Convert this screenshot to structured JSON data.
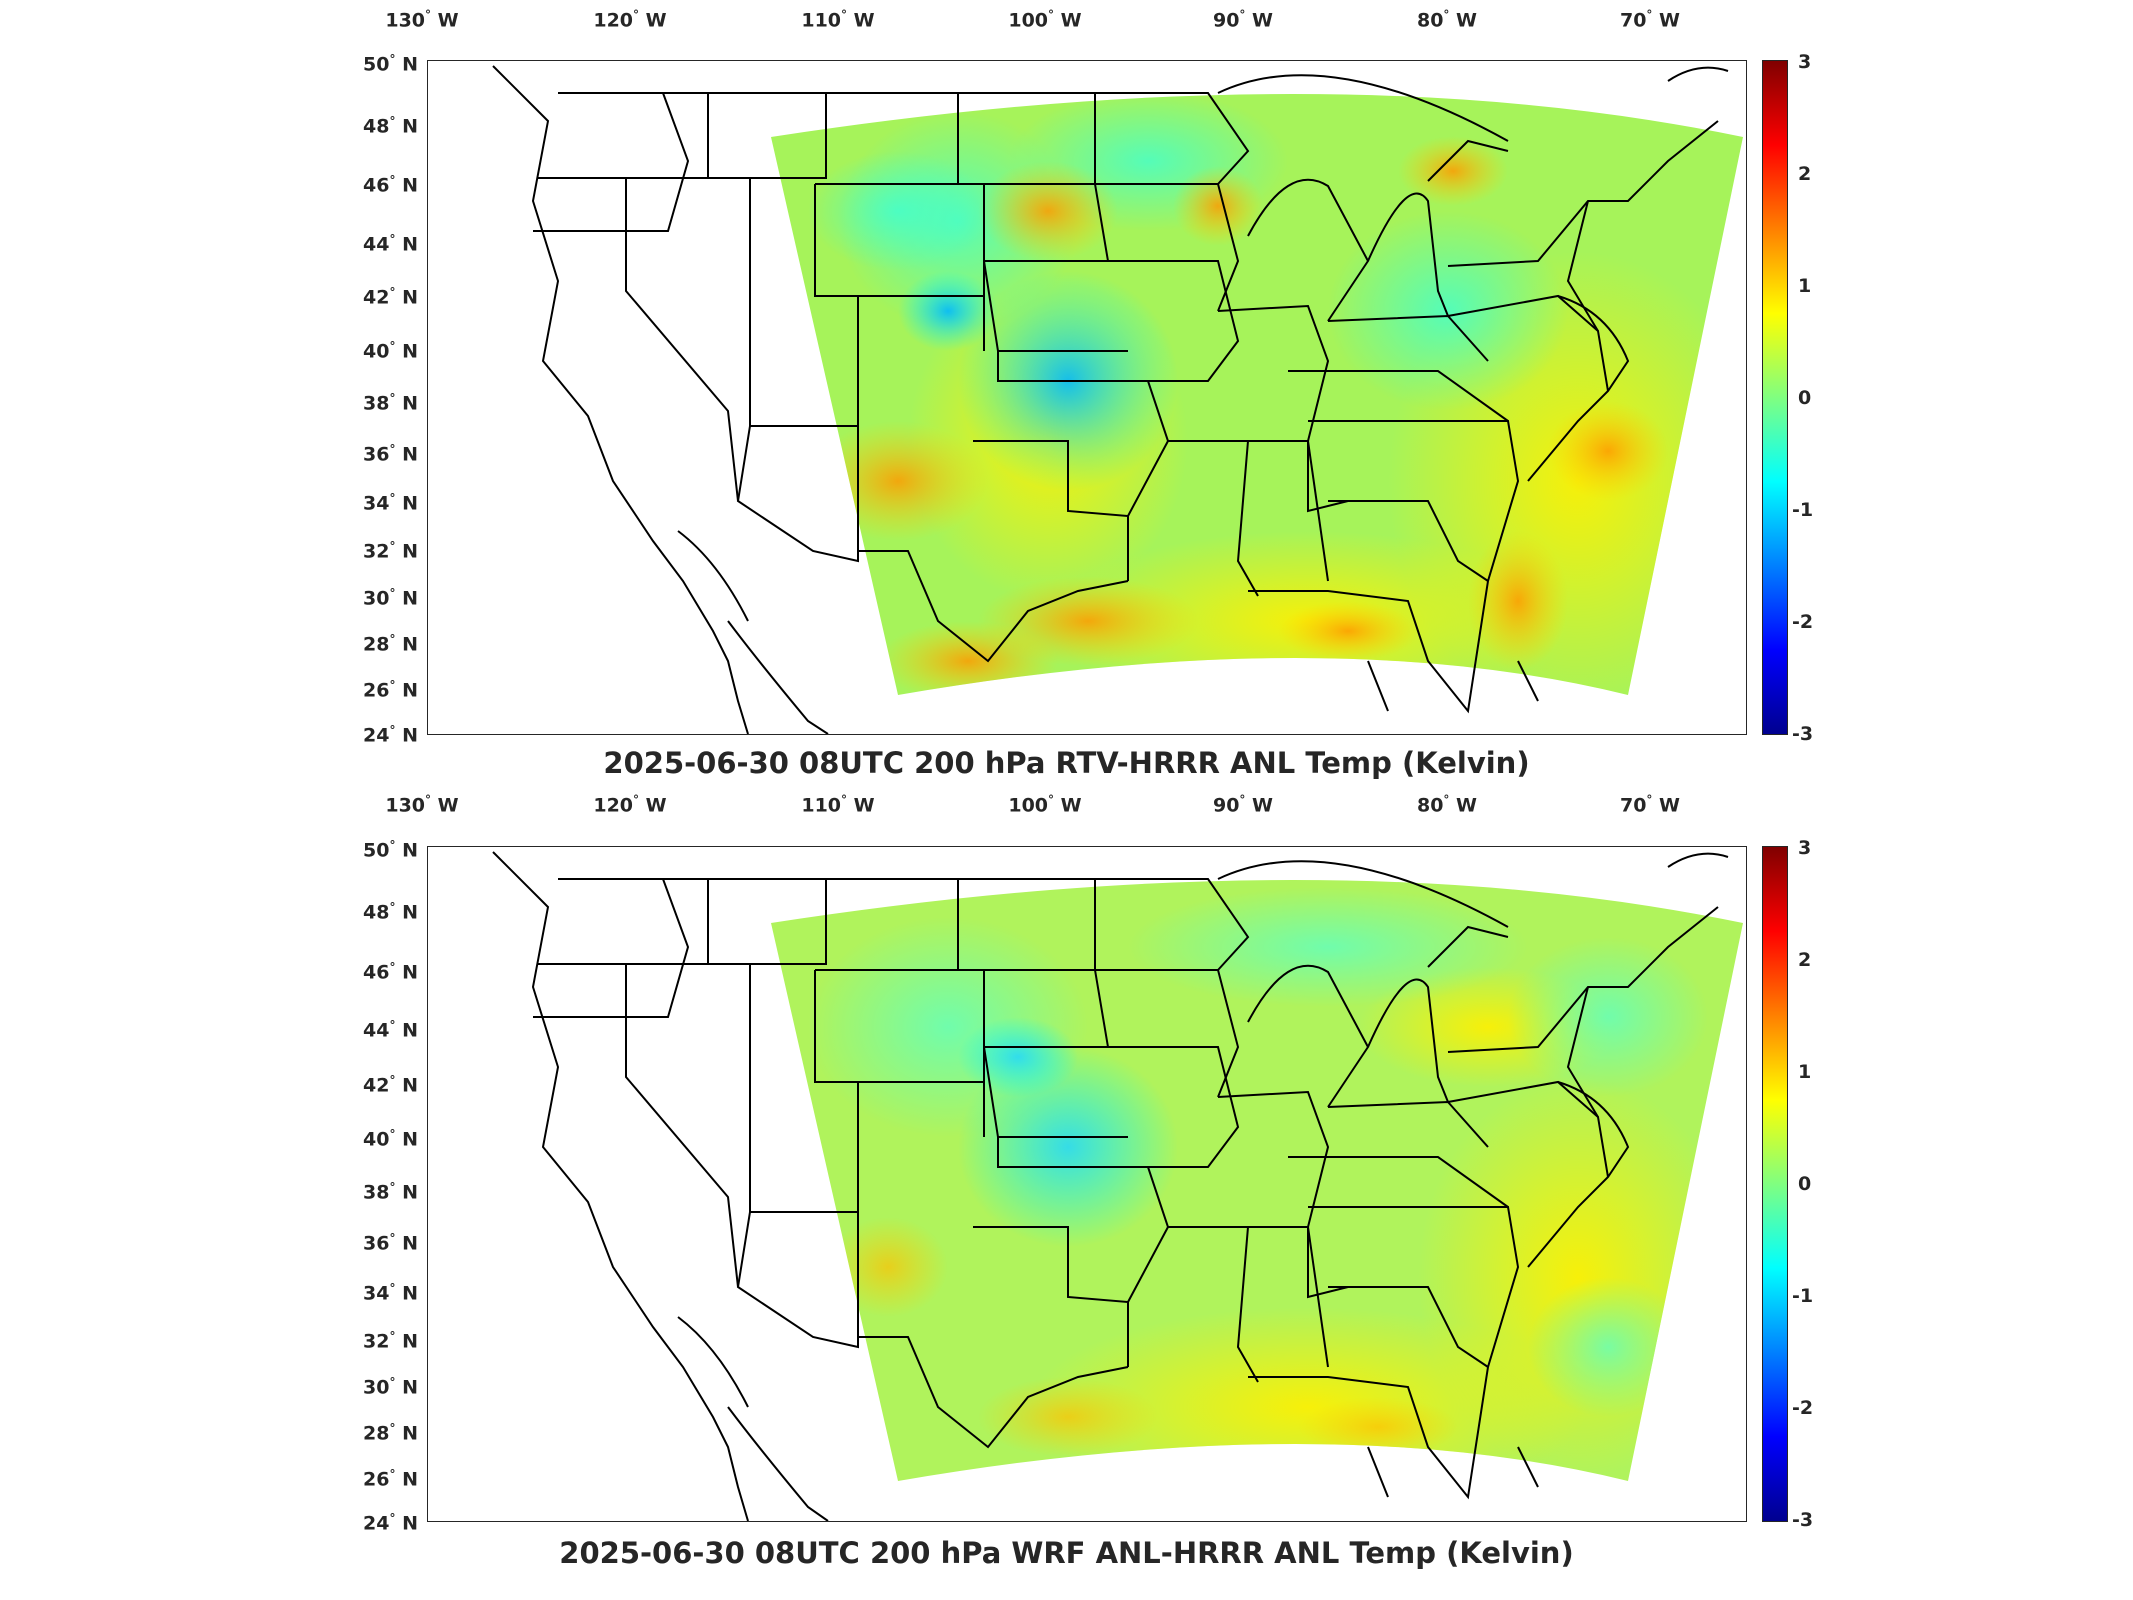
{
  "panels": [
    {
      "title": "2025-06-30 08UTC 200 hPa RTV-HRRR ANL Temp (Kelvin)",
      "lon_labels": [
        "130",
        "120",
        "110",
        "100",
        "90",
        "80",
        "70"
      ],
      "lon_suffix": "W",
      "lat_labels": [
        "50",
        "48",
        "46",
        "44",
        "42",
        "40",
        "38",
        "36",
        "34",
        "32",
        "30",
        "28",
        "26",
        "24"
      ],
      "lat_suffix": "N",
      "colorbar_ticks": [
        "3",
        "2",
        "1",
        "0",
        "-1",
        "-2",
        "-3"
      ],
      "field_bias": 0.4
    },
    {
      "title": "2025-06-30 08UTC 200 hPa WRF ANL-HRRR ANL Temp (Kelvin)",
      "lon_labels": [
        "130",
        "120",
        "110",
        "100",
        "90",
        "80",
        "70"
      ],
      "lon_suffix": "W",
      "lat_labels": [
        "50",
        "48",
        "46",
        "44",
        "42",
        "40",
        "38",
        "36",
        "34",
        "32",
        "30",
        "28",
        "26",
        "24"
      ],
      "lat_suffix": "N",
      "colorbar_ticks": [
        "3",
        "2",
        "1",
        "0",
        "-1",
        "-2",
        "-3"
      ],
      "field_bias": 0.3
    }
  ],
  "colors": {
    "colormap": [
      "#00008f",
      "#0000ff",
      "#0080ff",
      "#00ffff",
      "#80ff80",
      "#ffff00",
      "#ff8000",
      "#ff0000",
      "#800000"
    ],
    "axis": "#262626"
  }
}
